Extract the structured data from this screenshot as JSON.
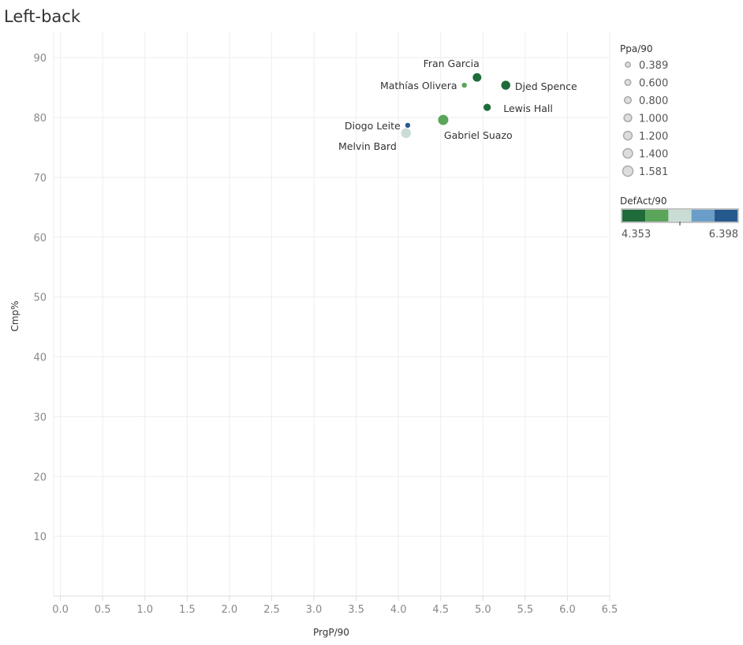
{
  "chart_data": {
    "type": "scatter",
    "title": "Left-back",
    "xlabel": "PrgP/90",
    "ylabel": "Cmp%",
    "xlim": [
      -0.08,
      6.5
    ],
    "ylim": [
      0,
      92
    ],
    "xticks": [
      "0.0",
      "0.5",
      "1.0",
      "1.5",
      "2.0",
      "2.5",
      "3.0",
      "3.5",
      "4.0",
      "4.5",
      "5.0",
      "5.5",
      "6.0",
      "6.5"
    ],
    "yticks": [
      "10",
      "20",
      "30",
      "40",
      "50",
      "60",
      "70",
      "80",
      "90"
    ],
    "points": [
      {
        "name": "Fran Garcia",
        "x": 4.93,
        "y": 86.7,
        "ppa": 1.2,
        "color": "#1f6b3a",
        "label_pos": "top-left"
      },
      {
        "name": "Mathías Olivera",
        "x": 4.78,
        "y": 85.4,
        "ppa": 0.389,
        "color": "#5aa55a",
        "label_pos": "left"
      },
      {
        "name": "Djed Spence",
        "x": 5.27,
        "y": 85.4,
        "ppa": 1.3,
        "color": "#1f6b3a",
        "label_pos": "right"
      },
      {
        "name": "Lewis Hall",
        "x": 5.05,
        "y": 81.7,
        "ppa": 0.9,
        "color": "#1f6b3a",
        "label_pos": "right-below"
      },
      {
        "name": "Diogo Leite",
        "x": 4.11,
        "y": 78.7,
        "ppa": 0.389,
        "color": "#265a8f",
        "label_pos": "left"
      },
      {
        "name": "Gabriel Suazo",
        "x": 4.53,
        "y": 79.6,
        "ppa": 1.581,
        "color": "#5aa55a",
        "label_pos": "below-right"
      },
      {
        "name": "Melvin Bard",
        "x": 4.09,
        "y": 77.4,
        "ppa": 1.5,
        "color": "#c9ddd5",
        "label_pos": "below-left"
      }
    ],
    "size_legend": {
      "title": "Ppa/90",
      "items": [
        "0.389",
        "0.600",
        "0.800",
        "1.000",
        "1.200",
        "1.400",
        "1.581"
      ],
      "values": [
        0.389,
        0.6,
        0.8,
        1.0,
        1.2,
        1.4,
        1.581
      ]
    },
    "color_legend": {
      "title": "DefAct/90",
      "min_label": "4.353",
      "max_label": "6.398",
      "colors": [
        "#1f6b3a",
        "#5aa55a",
        "#c9ddd5",
        "#6a9ec9",
        "#265a8f"
      ]
    }
  }
}
